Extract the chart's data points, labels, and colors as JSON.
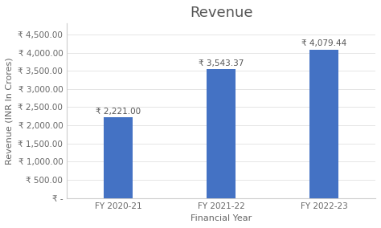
{
  "title": "Revenue",
  "xlabel": "Financial Year",
  "ylabel": "Revenue (INR In Crores)",
  "categories": [
    "FY 2020-21",
    "FY 2021-22",
    "FY 2022-23"
  ],
  "values": [
    2221.0,
    3543.37,
    4079.44
  ],
  "bar_color": "#4472C4",
  "bar_labels": [
    "₹ 2,221.00",
    "₹ 3,543.37",
    "₹ 4,079.44"
  ],
  "yticks": [
    0,
    500,
    1000,
    1500,
    2000,
    2500,
    3000,
    3500,
    4000,
    4500
  ],
  "ytick_labels": [
    "₹ -",
    "₹ 500.00",
    "₹ 1,000.00",
    "₹ 1,500.00",
    "₹ 2,000.00",
    "₹ 2,500.00",
    "₹ 3,000.00",
    "₹ 3,500.00",
    "₹ 4,000.00",
    "₹ 4,500.00"
  ],
  "ylim": [
    0,
    4800
  ],
  "background_color": "#ffffff",
  "bar_width": 0.28,
  "title_fontsize": 13,
  "label_fontsize": 8,
  "tick_fontsize": 7.5,
  "bar_label_fontsize": 7.5,
  "bar_label_color": "#555555",
  "spine_color": "#cccccc",
  "tick_color": "#666666",
  "title_color": "#555555"
}
